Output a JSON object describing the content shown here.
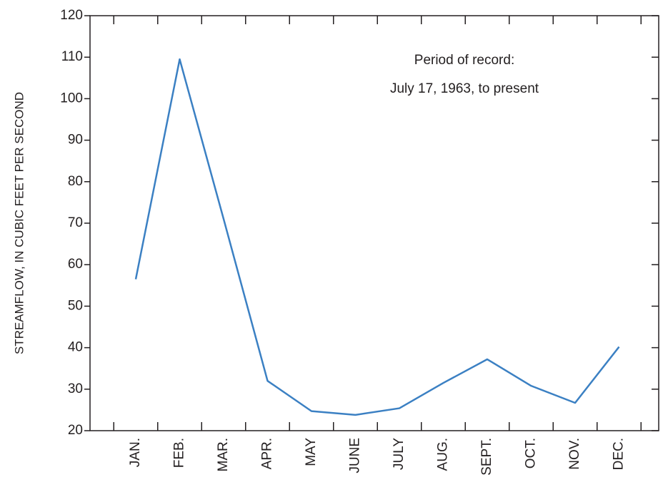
{
  "chart_data": {
    "type": "line",
    "y_label": "STREAMFLOW, IN CUBIC FEET PER SECOND",
    "annotation": [
      "Period of record:",
      "July 17, 1963, to present"
    ],
    "categories": [
      "JAN.",
      "FEB.",
      "MAR.",
      "APR.",
      "MAY",
      "JUNE",
      "JULY",
      "AUG.",
      "SEPT.",
      "OCT.",
      "NOV.",
      "DEC."
    ],
    "series": [
      {
        "color": "#3b80c3",
        "values": [
          56.5,
          109.5,
          71,
          32,
          24.7,
          23.8,
          25.4,
          31.5,
          37.2,
          30.8,
          26.7,
          40.2
        ]
      }
    ],
    "ylim": [
      20,
      120
    ],
    "yticks": [
      20,
      30,
      40,
      50,
      60,
      70,
      80,
      90,
      100,
      110,
      120
    ]
  }
}
